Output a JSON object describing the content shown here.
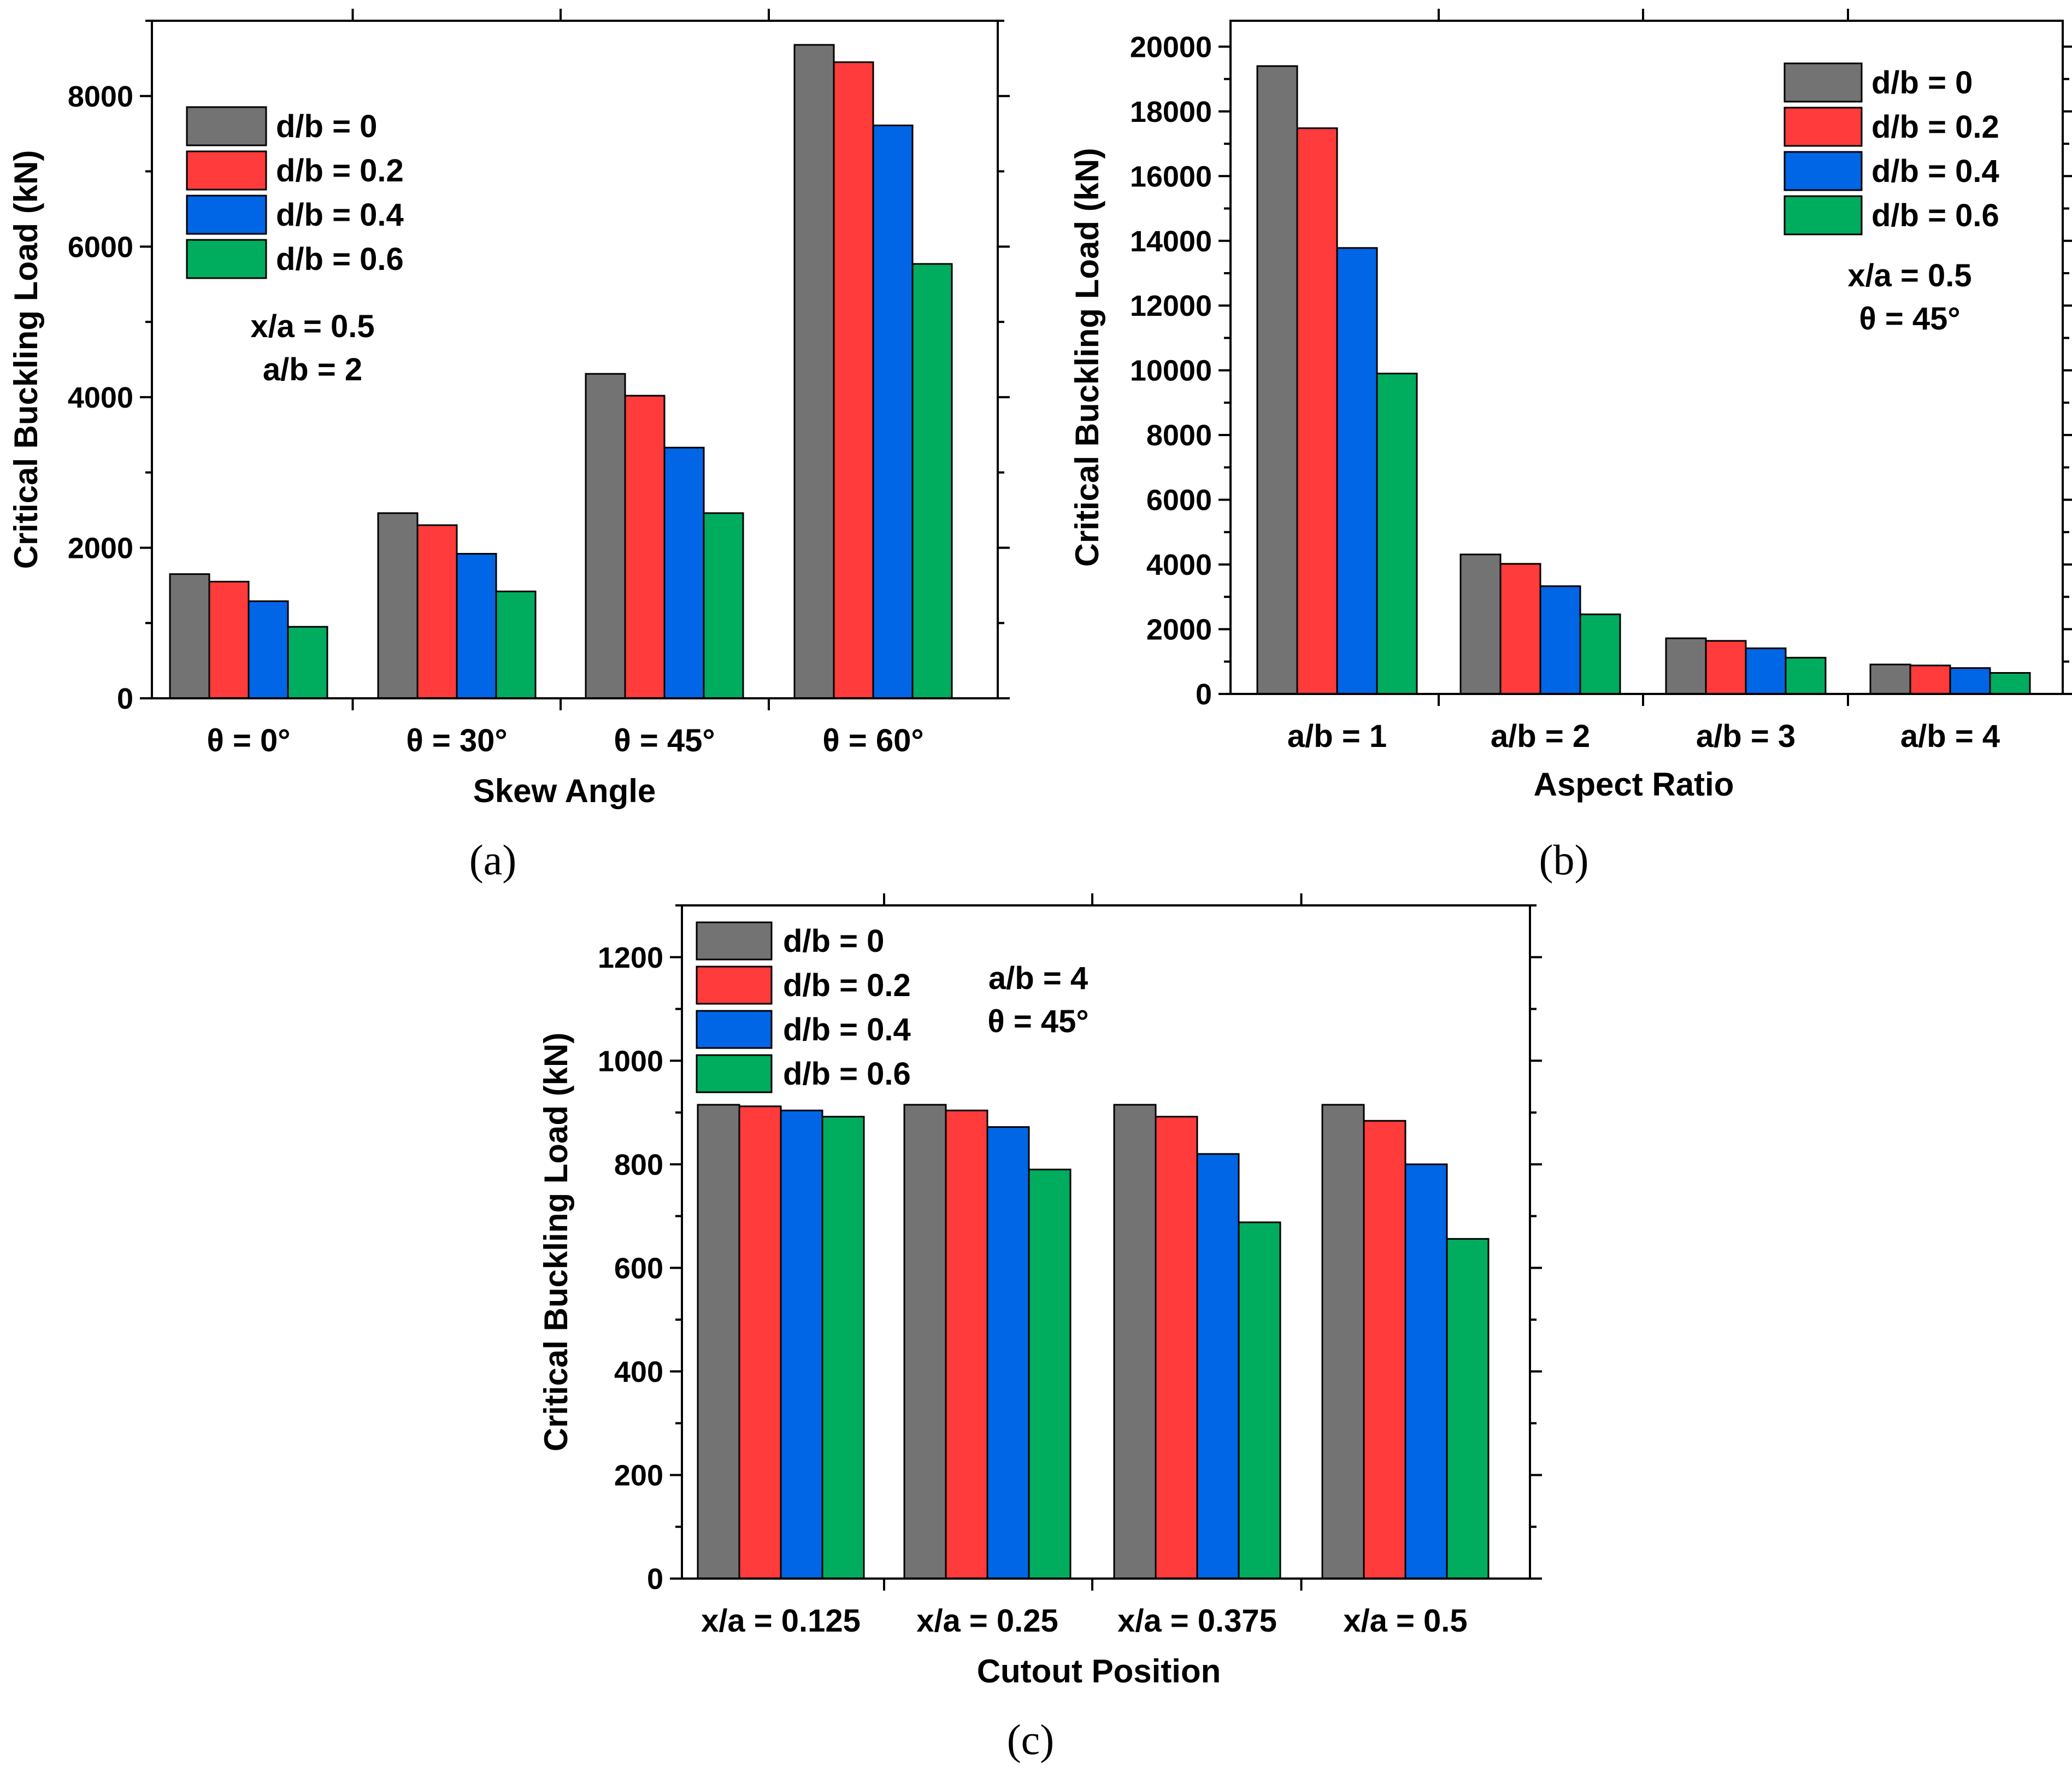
{
  "chart_data": [
    {
      "type": "bar",
      "panel_label": "(a)",
      "xlabel": "Skew Angle",
      "ylabel": "Critical Buckling Load (kN)",
      "ylim": [
        0,
        9000
      ],
      "yticks": [
        0,
        2000,
        4000,
        6000,
        8000
      ],
      "categories": [
        "θ = 0°",
        "θ = 30°",
        "θ = 45°",
        "θ = 60°"
      ],
      "series": [
        {
          "name": "d/b = 0",
          "color": "#737373",
          "values": [
            1650,
            2460,
            4310,
            8680
          ]
        },
        {
          "name": "d/b = 0.2",
          "color": "#ff3b3b",
          "values": [
            1550,
            2300,
            4020,
            8450
          ]
        },
        {
          "name": "d/b = 0.4",
          "color": "#0066e6",
          "values": [
            1290,
            1920,
            3330,
            7610
          ]
        },
        {
          "name": "d/b = 0.6",
          "color": "#00ad5f",
          "values": [
            950,
            1420,
            2460,
            5770
          ]
        }
      ],
      "annotations": [
        "x/a = 0.5",
        "a/b = 2"
      ],
      "legend": "top-left",
      "grid": false
    },
    {
      "type": "bar",
      "panel_label": "(b)",
      "xlabel": "Aspect Ratio",
      "ylabel": "Critical Buckling Load (kN)",
      "ylim": [
        0,
        20800
      ],
      "yticks": [
        0,
        2000,
        4000,
        6000,
        8000,
        10000,
        12000,
        14000,
        16000,
        18000,
        20000
      ],
      "categories": [
        "a/b = 1",
        "a/b = 2",
        "a/b = 3",
        "a/b = 4"
      ],
      "series": [
        {
          "name": "d/b = 0",
          "color": "#737373",
          "values": [
            19400,
            4310,
            1720,
            910
          ]
        },
        {
          "name": "d/b = 0.2",
          "color": "#ff3b3b",
          "values": [
            17480,
            4020,
            1640,
            880
          ]
        },
        {
          "name": "d/b = 0.4",
          "color": "#0066e6",
          "values": [
            13780,
            3330,
            1410,
            800
          ]
        },
        {
          "name": "d/b = 0.6",
          "color": "#00ad5f",
          "values": [
            9900,
            2460,
            1120,
            650
          ]
        }
      ],
      "annotations": [
        "x/a = 0.5",
        "θ = 45°"
      ],
      "legend": "top-right",
      "grid": false
    },
    {
      "type": "bar",
      "panel_label": "(c)",
      "xlabel": "Cutout Position",
      "ylabel": "Critical Buckling Load (kN)",
      "ylim": [
        0,
        1300
      ],
      "yticks": [
        0,
        200,
        400,
        600,
        800,
        1000,
        1200
      ],
      "categories": [
        "x/a = 0.125",
        "x/a = 0.25",
        "x/a = 0.375",
        "x/a = 0.5"
      ],
      "series": [
        {
          "name": "d/b = 0",
          "color": "#737373",
          "values": [
            915,
            915,
            915,
            915
          ]
        },
        {
          "name": "d/b = 0.2",
          "color": "#ff3b3b",
          "values": [
            912,
            904,
            892,
            884
          ]
        },
        {
          "name": "d/b = 0.4",
          "color": "#0066e6",
          "values": [
            904,
            872,
            820,
            800
          ]
        },
        {
          "name": "d/b = 0.6",
          "color": "#00ad5f",
          "values": [
            892,
            790,
            688,
            656
          ]
        }
      ],
      "annotations": [
        "a/b = 4",
        "θ = 45°"
      ],
      "legend": "top-left",
      "grid": false
    }
  ]
}
